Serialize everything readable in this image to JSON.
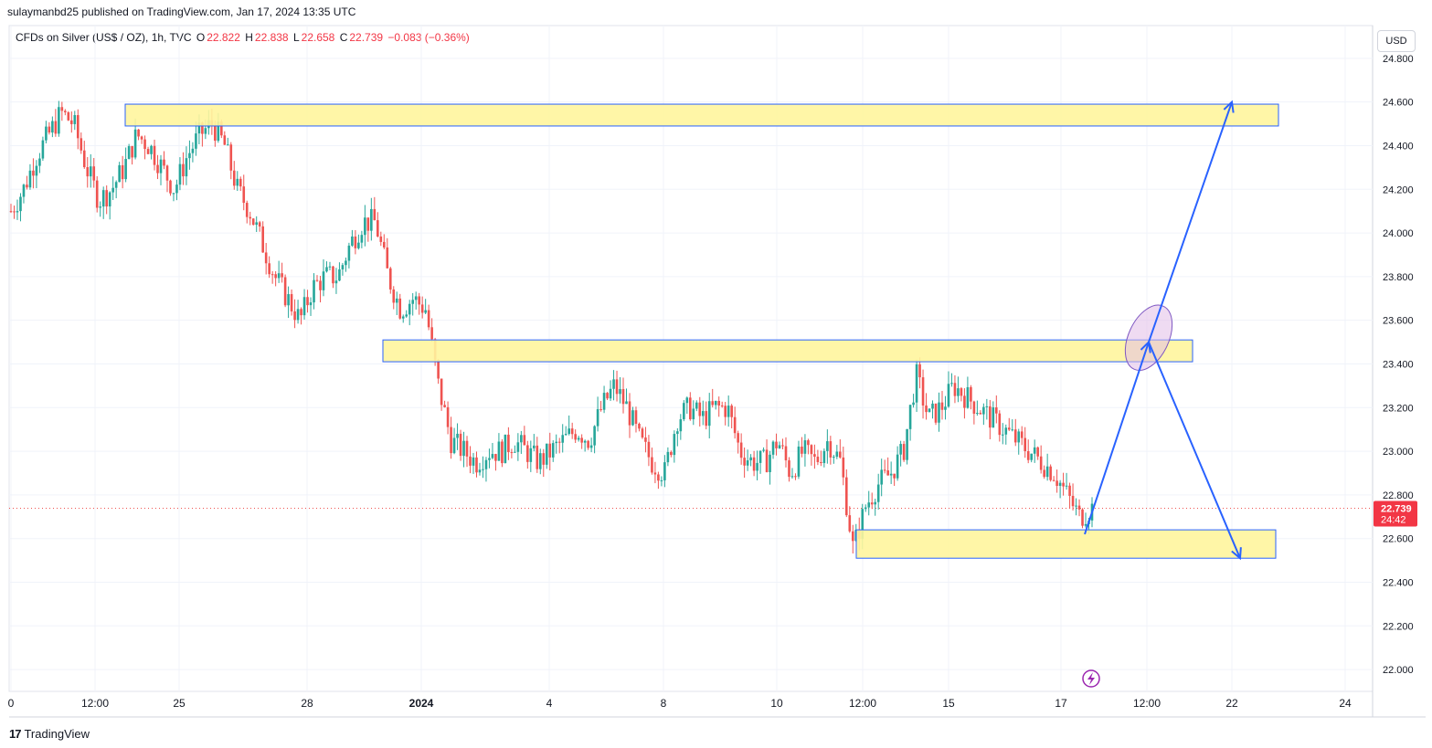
{
  "header": {
    "publisher_line": "sulaymanbd25 published on TradingView.com, Jan 17, 2024 13:35 UTC"
  },
  "legend": {
    "symbol": "CFDs on Silver (US$ / OZ), 1h, TVC",
    "open_label": "O",
    "open": "22.822",
    "high_label": "H",
    "high": "22.838",
    "low_label": "L",
    "low": "22.658",
    "close_label": "C",
    "close": "22.739",
    "change": "−0.083 (−0.36%)"
  },
  "currency_button": "USD",
  "price_badge": {
    "price": "22.739",
    "countdown": "24:42",
    "color": "#f23645"
  },
  "footer": {
    "brand": "TradingView",
    "logo_text": "17"
  },
  "colors": {
    "up": "#26a69a",
    "down": "#ef5350",
    "zone_fill": "#fff59d",
    "zone_stroke": "#2962ff",
    "arrow": "#2962ff"
  },
  "chart_data": {
    "type": "candlestick",
    "title": "CFDs on Silver (US$ / OZ), 1h, TVC",
    "ylim": [
      21.9,
      24.95
    ],
    "y_ticks": [
      "24.800",
      "24.600",
      "24.400",
      "24.200",
      "24.000",
      "23.800",
      "23.600",
      "23.400",
      "23.200",
      "23.000",
      "22.800",
      "22.600",
      "22.400",
      "22.200",
      "22.000"
    ],
    "x_ticks": [
      "0",
      "12:00",
      "25",
      "28",
      "2024",
      "4",
      "8",
      "10",
      "12:00",
      "15",
      "17",
      "12:00",
      "22",
      "24"
    ],
    "last_price": 22.739,
    "zones": [
      {
        "name": "resistance-top",
        "y_low": 24.49,
        "y_high": 24.59
      },
      {
        "name": "resistance-mid",
        "y_low": 23.41,
        "y_high": 23.51
      },
      {
        "name": "support-bottom",
        "y_low": 22.51,
        "y_high": 22.64
      }
    ],
    "projections": [
      {
        "from": 22.62,
        "via": 23.5,
        "to": 24.6,
        "direction": "up"
      },
      {
        "from": 23.5,
        "to": 22.51,
        "direction": "down"
      }
    ],
    "price_path": [
      24.1,
      24.2,
      24.35,
      24.45,
      24.55,
      24.5,
      24.3,
      24.15,
      24.2,
      24.3,
      24.45,
      24.4,
      24.3,
      24.2,
      24.35,
      24.45,
      24.5,
      24.4,
      24.2,
      24.1,
      23.95,
      23.8,
      23.7,
      23.6,
      23.75,
      23.8,
      23.8,
      23.95,
      24.05,
      24.05,
      23.8,
      23.65,
      23.7,
      23.65,
      23.3,
      23.05,
      23.0,
      22.95,
      23.0,
      23.0,
      23.05,
      23.0,
      22.95,
      23.0,
      23.05,
      23.1,
      23.05,
      23.2,
      23.3,
      23.2,
      23.05,
      22.95,
      22.9,
      23.15,
      23.2,
      23.15,
      23.2,
      23.2,
      23.0,
      22.95,
      22.95,
      23.05,
      22.9,
      23.0,
      22.95,
      23.05,
      22.95,
      22.55,
      22.75,
      22.85,
      22.9,
      23.0,
      23.35,
      23.15,
      23.2,
      23.3,
      23.25,
      23.2,
      23.15,
      23.1,
      23.05,
      23.0,
      22.95,
      22.9,
      22.8,
      22.7,
      22.74
    ]
  }
}
